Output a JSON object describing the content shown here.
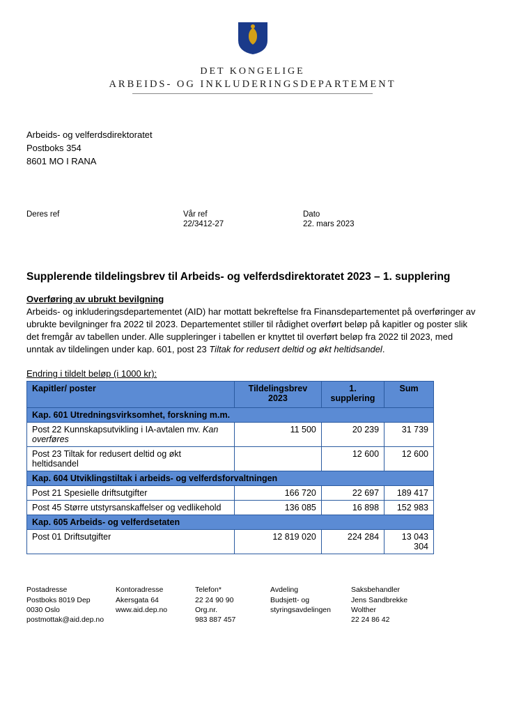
{
  "header": {
    "sub": "DET KONGELIGE",
    "main": "ARBEIDS- OG INKLUDERINGSDEPARTEMENT",
    "crest_bg": "#1a3a8a",
    "crest_lion": "#d4a017"
  },
  "recipient": {
    "line1": "Arbeids- og velferdsdirektoratet",
    "line2": "Postboks 354",
    "line3": "8601 MO I RANA"
  },
  "refs": {
    "deres_label": "Deres ref",
    "deres_val": "",
    "var_label": "Vår ref",
    "var_val": "22/3412-27",
    "dato_label": "Dato",
    "dato_val": "22. mars 2023"
  },
  "title": "Supplerende tildelingsbrev til Arbeids- og velferdsdirektoratet 2023 – 1. supplering",
  "subhead": "Overføring av ubrukt bevilgning",
  "body_p1a": "Arbeids- og inkluderingsdepartementet (AID) har mottatt bekreftelse fra Finansdepartementet på overføringer av ubrukte bevilgninger fra 2022 til 2023. Departementet stiller til rådighet overført beløp på kapitler og poster slik det fremgår av tabellen under. Alle suppleringer i tabellen er knyttet til overført beløp fra 2022 til 2023, med unntak av tildelingen under kap. 601, post 23 ",
  "body_p1_italic": "Tiltak for redusert deltid og økt heltidsandel",
  "body_p1b": ".",
  "table_caption": "Endring i tildelt beløp (i 1000 kr):",
  "table": {
    "headers": [
      "Kapitler/ poster",
      "Tildelingsbrev 2023",
      "1. supplering",
      "Sum"
    ],
    "header_bg": "#5b8bd4",
    "border_color": "#2a5aa0",
    "rows": [
      {
        "type": "section",
        "label": "Kap. 601 Utredningsvirksomhet, forskning m.m."
      },
      {
        "type": "data",
        "label_a": "Post 22 Kunnskapsutvikling i IA-avtalen mv. ",
        "label_italic": "Kan overføres",
        "c1": "11 500",
        "c2": "20 239",
        "c3": "31 739"
      },
      {
        "type": "data",
        "label_a": "Post 23 Tiltak for redusert deltid og økt heltidsandel",
        "label_italic": "",
        "c1": "",
        "c2": "12 600",
        "c3": "12 600"
      },
      {
        "type": "section",
        "label": "Kap. 604 Utviklingstiltak i arbeids- og velferdsforvaltningen"
      },
      {
        "type": "data",
        "label_a": "Post 21 Spesielle driftsutgifter",
        "label_italic": "",
        "c1": "166 720",
        "c2": "22 697",
        "c3": "189 417"
      },
      {
        "type": "data",
        "label_a": "Post 45 Større utstyrsanskaffelser og vedlikehold",
        "label_italic": "",
        "c1": "136 085",
        "c2": "16 898",
        "c3": "152 983"
      },
      {
        "type": "section",
        "label": "Kap. 605 Arbeids- og velferdsetaten"
      },
      {
        "type": "data",
        "label_a": "Post 01 Driftsutgifter",
        "label_italic": "",
        "c1": "12 819 020",
        "c2": "224 284",
        "c3": "13 043 304"
      }
    ]
  },
  "footer": {
    "c1": {
      "l1": "Postadresse",
      "l2": "Postboks 8019 Dep",
      "l3": "0030 Oslo",
      "l4": "postmottak@aid.dep.no"
    },
    "c2": {
      "l1": "Kontoradresse",
      "l2": "Akersgata 64",
      "l3": "",
      "l4": "www.aid.dep.no"
    },
    "c3": {
      "l1": "Telefon*",
      "l2": "22 24 90 90",
      "l3": "Org.nr.",
      "l4": "983 887 457"
    },
    "c4": {
      "l1": "Avdeling",
      "l2": "Budsjett- og styringsavdelingen",
      "l3": "",
      "l4": ""
    },
    "c5": {
      "l1": "Saksbehandler",
      "l2": "Jens Sandbrekke Wolther",
      "l3": "22 24 86 42",
      "l4": ""
    }
  }
}
